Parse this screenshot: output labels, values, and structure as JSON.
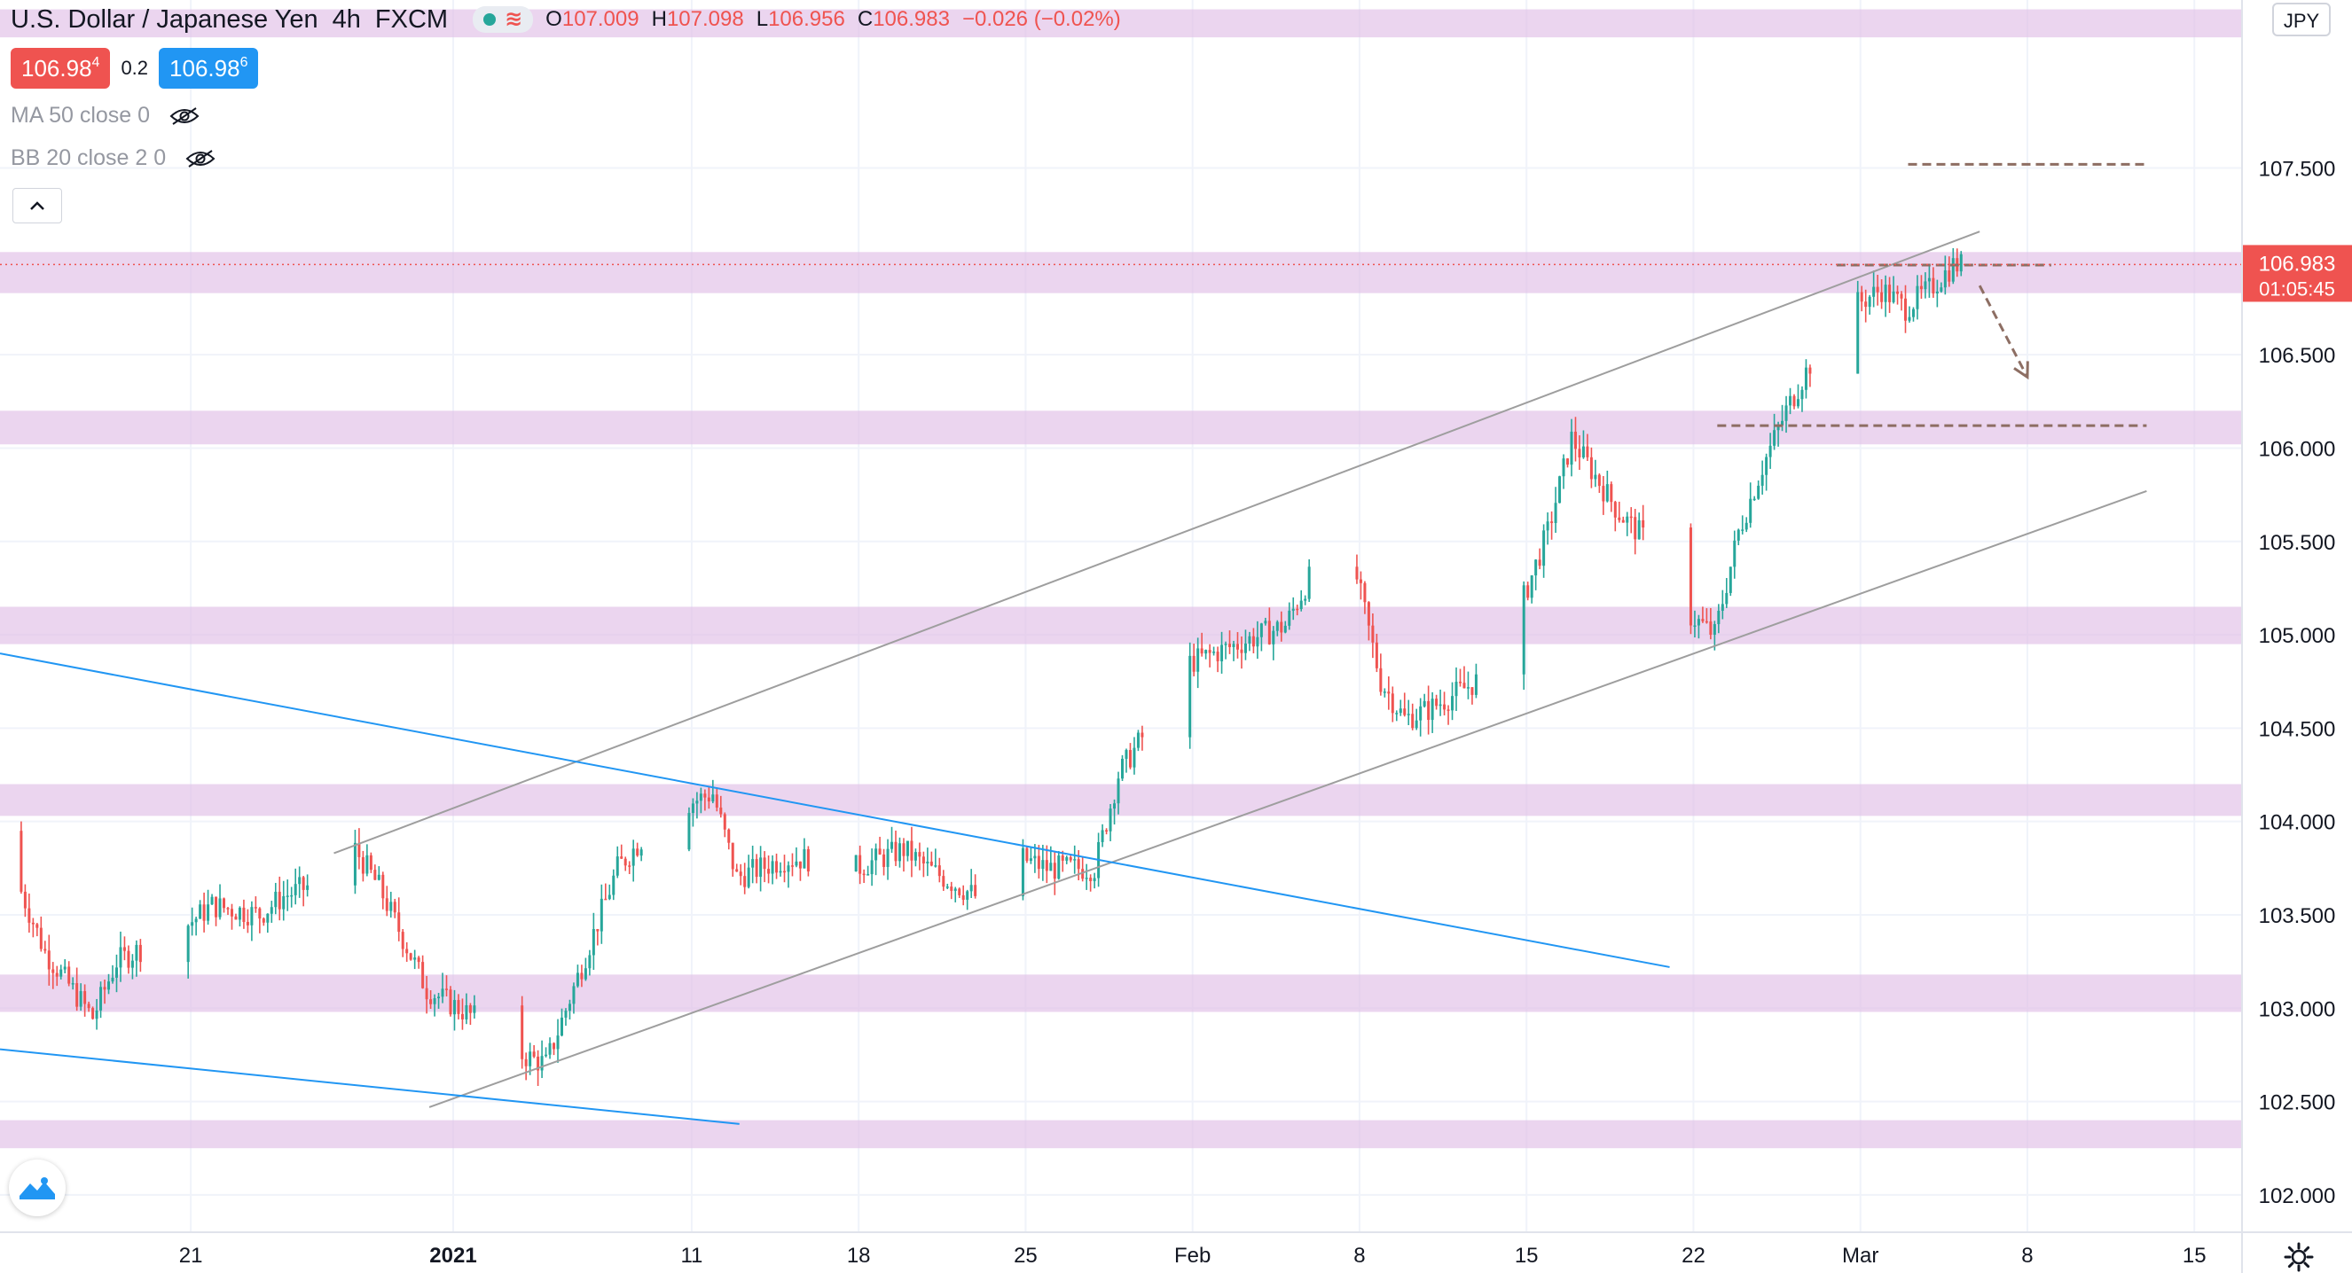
{
  "header": {
    "symbol": "U.S. Dollar / Japanese Yen",
    "interval": "4h",
    "exchange": "FXCM",
    "ohlc": [
      {
        "k": "O",
        "v": "107.009"
      },
      {
        "k": "H",
        "v": "107.098"
      },
      {
        "k": "L",
        "v": "106.956"
      },
      {
        "k": "C",
        "v": "106.983"
      },
      {
        "k": "",
        "v": "−0.026 (−0.02%)"
      }
    ]
  },
  "trade": {
    "sell_main": "106.98",
    "sell_sup": "4",
    "spread": "0.2",
    "buy_main": "106.98",
    "buy_sup": "6"
  },
  "indicators": [
    {
      "label": "MA 50 close 0",
      "icon": "eye-off-icon"
    },
    {
      "label": "BB 20 close 2 0",
      "icon": "eye-off-icon"
    }
  ],
  "currency_badge": "JPY",
  "last_price": {
    "value": "106.983",
    "countdown": "01:05:45"
  },
  "chart_data": {
    "type": "candlestick",
    "y_range": [
      101.8,
      108.4
    ],
    "x_range_days": [
      "2020-12-13",
      "2021-03-17"
    ],
    "y_ticks": [
      "102.000",
      "102.500",
      "103.000",
      "103.500",
      "104.000",
      "104.500",
      "105.000",
      "105.500",
      "106.000",
      "106.500",
      "107.500"
    ],
    "x_ticks": [
      {
        "label": "21",
        "date": "2020-12-21"
      },
      {
        "label": "2021",
        "date": "2021-01-01",
        "bold": true
      },
      {
        "label": "11",
        "date": "2021-01-11"
      },
      {
        "label": "18",
        "date": "2021-01-18"
      },
      {
        "label": "25",
        "date": "2021-01-25"
      },
      {
        "label": "Feb",
        "date": "2021-02-01"
      },
      {
        "label": "8",
        "date": "2021-02-08"
      },
      {
        "label": "15",
        "date": "2021-02-15"
      },
      {
        "label": "22",
        "date": "2021-02-22"
      },
      {
        "label": "Mar",
        "date": "2021-03-01"
      },
      {
        "label": "8",
        "date": "2021-03-08"
      },
      {
        "label": "15",
        "date": "2021-03-15"
      }
    ],
    "zones": [
      {
        "from": 108.2,
        "to": 108.35
      },
      {
        "from": 106.83,
        "to": 107.05
      },
      {
        "from": 106.02,
        "to": 106.2
      },
      {
        "from": 104.95,
        "to": 105.15
      },
      {
        "from": 104.03,
        "to": 104.2
      },
      {
        "from": 102.98,
        "to": 103.18
      },
      {
        "from": 102.25,
        "to": 102.4
      }
    ],
    "channel_upper": [
      [
        "2020-12-27",
        103.83
      ],
      [
        "2021-03-06",
        107.16
      ]
    ],
    "channel_lower": [
      [
        "2020-12-31",
        102.47
      ],
      [
        "2021-03-13",
        105.77
      ]
    ],
    "blue_line_1": [
      [
        "2020-12-13",
        104.9
      ],
      [
        "2021-02-21",
        103.22
      ]
    ],
    "blue_line_2": [
      [
        "2020-12-13",
        102.78
      ],
      [
        "2021-01-13",
        102.38
      ]
    ],
    "dashed_levels": [
      {
        "date_from": "2021-03-03",
        "date_to": "2021-03-13",
        "value": 107.52
      },
      {
        "date_from": "2021-02-28",
        "date_to": "2021-03-09",
        "value": 106.98
      },
      {
        "date_from": "2021-02-23",
        "date_to": "2021-03-13",
        "value": 106.12
      }
    ],
    "projection_arrow": [
      [
        "2021-03-06",
        106.87
      ],
      [
        "2021-03-08",
        106.38
      ]
    ],
    "close_path": [
      [
        "2020-12-13",
        103.95
      ],
      [
        "2020-12-15",
        103.3
      ],
      [
        "2020-12-17",
        102.95
      ],
      [
        "2020-12-18",
        103.25
      ],
      [
        "2020-12-21",
        103.45
      ],
      [
        "2020-12-22",
        103.55
      ],
      [
        "2020-12-24",
        103.5
      ],
      [
        "2020-12-25",
        103.6
      ],
      [
        "2020-12-27",
        103.7
      ],
      [
        "2020-12-28",
        103.85
      ],
      [
        "2020-12-29",
        103.65
      ],
      [
        "2020-12-31",
        103.1
      ],
      [
        "2021-01-02",
        102.95
      ],
      [
        "2021-01-03",
        102.8
      ],
      [
        "2021-01-05",
        102.7
      ],
      [
        "2021-01-06",
        103.05
      ],
      [
        "2021-01-08",
        103.75
      ],
      [
        "2021-01-10",
        104.05
      ],
      [
        "2021-01-12",
        104.15
      ],
      [
        "2021-01-13",
        103.7
      ],
      [
        "2021-01-15",
        103.8
      ],
      [
        "2021-01-17",
        103.8
      ],
      [
        "2021-01-18",
        103.75
      ],
      [
        "2021-01-20",
        103.85
      ],
      [
        "2021-01-21",
        103.75
      ],
      [
        "2021-01-23",
        103.6
      ],
      [
        "2021-01-24",
        103.5
      ],
      [
        "2021-01-25",
        103.8
      ],
      [
        "2021-01-26",
        103.75
      ],
      [
        "2021-01-28",
        103.75
      ],
      [
        "2021-01-29",
        104.25
      ],
      [
        "2021-01-31",
        104.65
      ],
      [
        "2021-02-01",
        104.85
      ],
      [
        "2021-02-03",
        104.95
      ],
      [
        "2021-02-05",
        105.05
      ],
      [
        "2021-02-06",
        105.3
      ],
      [
        "2021-02-07",
        105.55
      ],
      [
        "2021-02-08",
        105.3
      ],
      [
        "2021-02-09",
        104.75
      ],
      [
        "2021-02-10",
        104.55
      ],
      [
        "2021-02-11",
        104.6
      ],
      [
        "2021-02-13",
        104.75
      ],
      [
        "2021-02-15",
        105.2
      ],
      [
        "2021-02-16",
        105.55
      ],
      [
        "2021-02-17",
        106.05
      ],
      [
        "2021-02-18",
        105.85
      ],
      [
        "2021-02-19",
        105.65
      ],
      [
        "2021-02-21",
        105.4
      ],
      [
        "2021-02-22",
        105.1
      ],
      [
        "2021-02-23",
        105.0
      ],
      [
        "2021-02-24",
        105.55
      ],
      [
        "2021-02-25",
        105.9
      ],
      [
        "2021-02-26",
        106.2
      ],
      [
        "2021-02-27",
        106.45
      ],
      [
        "2021-02-28",
        106.7
      ],
      [
        "2021-03-02",
        106.85
      ],
      [
        "2021-03-03",
        106.75
      ],
      [
        "2021-03-04",
        106.85
      ],
      [
        "2021-03-05",
        106.98
      ]
    ]
  }
}
